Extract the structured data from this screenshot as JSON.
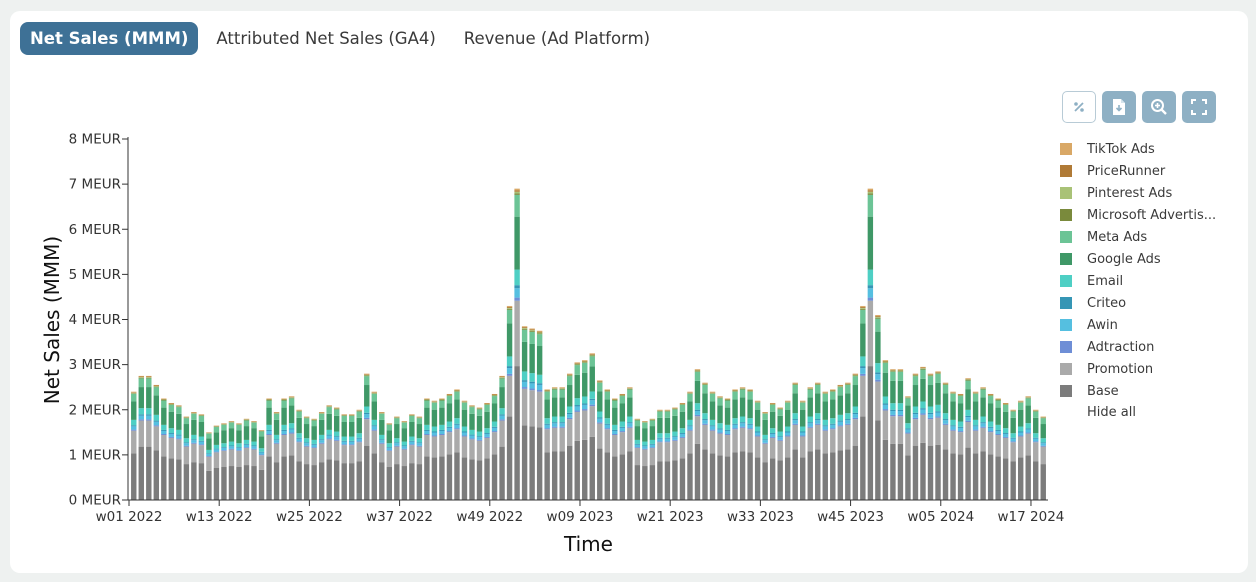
{
  "tabs": [
    {
      "label": "Net Sales (MMM)",
      "active": true
    },
    {
      "label": "Attributed Net Sales (GA4)",
      "active": false
    },
    {
      "label": "Revenue (Ad Platform)",
      "active": false
    }
  ],
  "toolbar": [
    {
      "name": "percent-toggle-button",
      "icon": "percent-icon"
    },
    {
      "name": "export-file-button",
      "icon": "file-download-icon"
    },
    {
      "name": "zoom-button",
      "icon": "zoom-in-icon"
    },
    {
      "name": "fullscreen-button",
      "icon": "expand-icon"
    }
  ],
  "legend": {
    "items": [
      {
        "label": "TikTok Ads",
        "color": "#d9a866"
      },
      {
        "label": "PriceRunner",
        "color": "#b07a36"
      },
      {
        "label": "Pinterest Ads",
        "color": "#a9c277"
      },
      {
        "label": "Microsoft Advertis...",
        "color": "#7a8a3c"
      },
      {
        "label": "Meta Ads",
        "color": "#6cc496"
      },
      {
        "label": "Google Ads",
        "color": "#3f9867"
      },
      {
        "label": "Email",
        "color": "#4ecfc4"
      },
      {
        "label": "Criteo",
        "color": "#3596b5"
      },
      {
        "label": "Awin",
        "color": "#55bfe0"
      },
      {
        "label": "Adtraction",
        "color": "#6e8ed6"
      },
      {
        "label": "Promotion",
        "color": "#aaaaaa"
      },
      {
        "label": "Base",
        "color": "#7c7c7c"
      }
    ],
    "hide_all": "Hide all"
  },
  "chart_data": {
    "type": "bar",
    "stacked": true,
    "xlabel": "Time",
    "ylabel": "Net Sales (MMM)",
    "ylim": [
      0,
      8
    ],
    "yticks": [
      "0 MEUR",
      "1 MEUR",
      "2 MEUR",
      "3 MEUR",
      "4 MEUR",
      "5 MEUR",
      "6 MEUR",
      "7 MEUR",
      "8 MEUR"
    ],
    "xticks": [
      {
        "index": 0,
        "label": "w01 2022"
      },
      {
        "index": 12,
        "label": "w13 2022"
      },
      {
        "index": 24,
        "label": "w25 2022"
      },
      {
        "index": 36,
        "label": "w37 2022"
      },
      {
        "index": 48,
        "label": "w49 2022"
      },
      {
        "index": 60,
        "label": "w09 2023"
      },
      {
        "index": 72,
        "label": "w21 2023"
      },
      {
        "index": 84,
        "label": "w33 2023"
      },
      {
        "index": 96,
        "label": "w45 2023"
      },
      {
        "index": 108,
        "label": "w05 2024"
      },
      {
        "index": 120,
        "label": "w17 2024"
      }
    ],
    "totals": [
      2.4,
      2.75,
      2.75,
      2.55,
      2.25,
      2.15,
      2.1,
      1.85,
      1.95,
      1.9,
      1.5,
      1.65,
      1.7,
      1.75,
      1.7,
      1.8,
      1.75,
      1.55,
      2.25,
      1.95,
      2.25,
      2.3,
      2.0,
      1.85,
      1.8,
      1.95,
      2.1,
      2.05,
      1.9,
      1.9,
      2.0,
      2.8,
      2.4,
      1.95,
      1.7,
      1.85,
      1.75,
      1.9,
      1.85,
      2.25,
      2.2,
      2.25,
      2.35,
      2.45,
      2.2,
      2.1,
      2.05,
      2.15,
      2.35,
      2.75,
      4.3,
      6.9,
      3.85,
      3.8,
      3.75,
      2.45,
      2.5,
      2.5,
      2.8,
      3.05,
      3.1,
      3.25,
      2.65,
      2.45,
      2.25,
      2.35,
      2.5,
      1.8,
      1.75,
      1.8,
      2.0,
      2.0,
      2.05,
      2.15,
      2.4,
      2.9,
      2.6,
      2.4,
      2.3,
      2.25,
      2.45,
      2.5,
      2.45,
      2.2,
      1.95,
      2.15,
      2.05,
      2.2,
      2.6,
      2.2,
      2.5,
      2.6,
      2.4,
      2.45,
      2.55,
      2.6,
      2.8,
      4.3,
      6.9,
      4.1,
      3.1,
      2.9,
      2.9,
      2.3,
      2.8,
      2.95,
      2.8,
      2.85,
      2.6,
      2.4,
      2.35,
      2.7,
      2.4,
      2.5,
      2.35,
      2.25,
      2.15,
      2.0,
      2.2,
      2.3,
      2.0,
      1.85
    ],
    "series": [
      {
        "name": "Base",
        "share": 0.43
      },
      {
        "name": "Promotion",
        "share": 0.21
      },
      {
        "name": "Adtraction",
        "share": 0.01
      },
      {
        "name": "Awin",
        "share": 0.03
      },
      {
        "name": "Criteo",
        "share": 0.01
      },
      {
        "name": "Email",
        "share": 0.05
      },
      {
        "name": "Google Ads",
        "share": 0.17
      },
      {
        "name": "Meta Ads",
        "share": 0.07
      },
      {
        "name": "Microsoft Advertis...",
        "share": 0.005
      },
      {
        "name": "Pinterest Ads",
        "share": 0.005
      },
      {
        "name": "PriceRunner",
        "share": 0.005
      },
      {
        "name": "TikTok Ads",
        "share": 0.005
      }
    ]
  }
}
